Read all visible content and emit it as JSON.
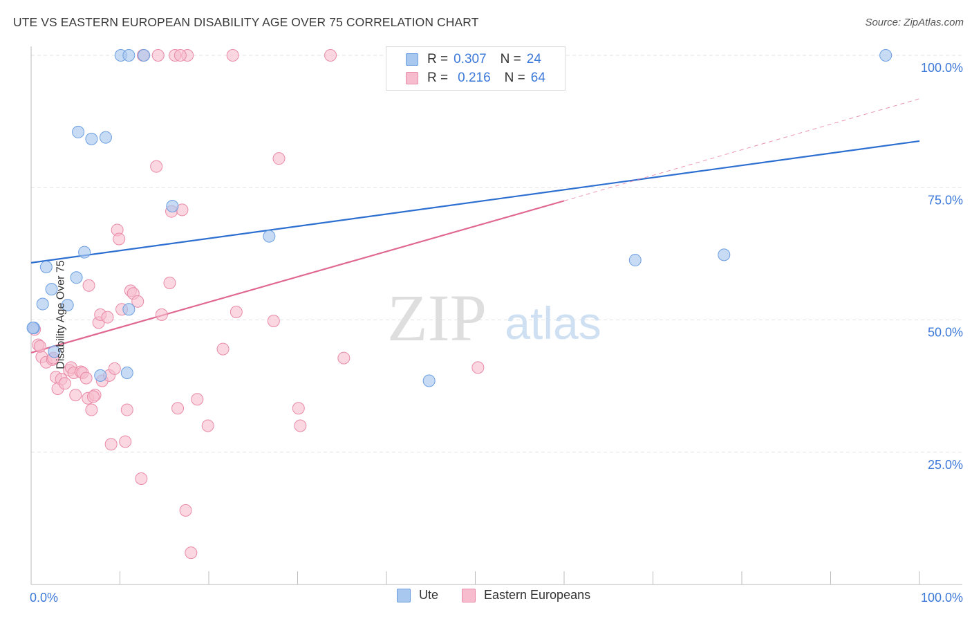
{
  "header": {
    "title": "UTE VS EASTERN EUROPEAN DISABILITY AGE OVER 75 CORRELATION CHART",
    "source": "Source: ZipAtlas.com"
  },
  "legend_top": {
    "rows": [
      {
        "r_label": "R =",
        "r_value": "0.307",
        "n_label": "N =",
        "n_value": "24"
      },
      {
        "r_label": "R =",
        "r_value": "0.216",
        "n_label": "N =",
        "n_value": "64"
      }
    ]
  },
  "legend_bottom": {
    "items": [
      "Ute",
      "Eastern Europeans"
    ]
  },
  "watermark": {
    "zip": "ZIP",
    "atlas": "atlas"
  },
  "colors": {
    "ute_fill": "#a9c8f0",
    "ute_stroke": "#6b9ee0",
    "ute_line": "#2d6fd1",
    "ee_fill": "#f7bccd",
    "ee_stroke": "#e98aa6",
    "ee_line": "#e06890",
    "axis_text": "#3c78d8"
  },
  "chart_data": {
    "type": "scatter",
    "ylabel": "Disability Age Over 75",
    "xlabel": "",
    "xlim": [
      0,
      100
    ],
    "ylim": [
      0,
      100
    ],
    "x_tick_labels": {
      "left": "0.0%",
      "right": "100.0%"
    },
    "y_tick_labels": [
      "100.0%",
      "75.0%",
      "50.0%",
      "25.0%"
    ],
    "y_tick_values": [
      100,
      75,
      50,
      25
    ],
    "grid": "horizontal dashed",
    "series": [
      {
        "name": "Ute",
        "points": [
          [
            0.3,
            48.5
          ],
          [
            1.3,
            53.0
          ],
          [
            1.7,
            60.0
          ],
          [
            2.3,
            55.8
          ],
          [
            2.6,
            44.0
          ],
          [
            4.1,
            52.8
          ],
          [
            5.1,
            58.0
          ],
          [
            5.3,
            85.5
          ],
          [
            6.0,
            62.8
          ],
          [
            6.8,
            84.2
          ],
          [
            7.8,
            39.5
          ],
          [
            8.4,
            84.5
          ],
          [
            10.1,
            100
          ],
          [
            11.0,
            100
          ],
          [
            11.0,
            52.0
          ],
          [
            10.8,
            40.0
          ],
          [
            15.9,
            71.5
          ],
          [
            26.8,
            65.8
          ],
          [
            44.8,
            38.5
          ],
          [
            68.0,
            61.3
          ],
          [
            78.0,
            62.3
          ],
          [
            96.2,
            100
          ],
          [
            0.2,
            48.5
          ],
          [
            12.7,
            100
          ]
        ],
        "trend": [
          [
            0,
            60.8
          ],
          [
            100,
            83.8
          ]
        ]
      },
      {
        "name": "Eastern Europeans",
        "points": [
          [
            0.4,
            48.2
          ],
          [
            0.8,
            45.3
          ],
          [
            1.2,
            43.0
          ],
          [
            1.7,
            42.0
          ],
          [
            2.4,
            42.5
          ],
          [
            2.5,
            42.8
          ],
          [
            2.8,
            39.2
          ],
          [
            3.0,
            37.0
          ],
          [
            3.4,
            38.8
          ],
          [
            3.8,
            38.0
          ],
          [
            4.3,
            40.5
          ],
          [
            4.5,
            41.0
          ],
          [
            4.8,
            40.0
          ],
          [
            5.0,
            35.8
          ],
          [
            5.6,
            40.2
          ],
          [
            5.8,
            40.0
          ],
          [
            6.2,
            39.0
          ],
          [
            6.4,
            35.2
          ],
          [
            6.5,
            56.5
          ],
          [
            6.8,
            33.0
          ],
          [
            7.2,
            35.8
          ],
          [
            7.6,
            49.5
          ],
          [
            7.8,
            51.0
          ],
          [
            8.0,
            38.5
          ],
          [
            8.6,
            50.5
          ],
          [
            8.8,
            39.5
          ],
          [
            9.0,
            26.5
          ],
          [
            9.4,
            40.8
          ],
          [
            9.7,
            67.0
          ],
          [
            9.9,
            65.3
          ],
          [
            10.2,
            52.0
          ],
          [
            10.6,
            27.0
          ],
          [
            10.8,
            33.0
          ],
          [
            11.2,
            55.5
          ],
          [
            11.5,
            55.0
          ],
          [
            12.0,
            53.5
          ],
          [
            12.4,
            20.0
          ],
          [
            12.6,
            100
          ],
          [
            14.1,
            79.0
          ],
          [
            14.3,
            100
          ],
          [
            14.7,
            51.0
          ],
          [
            15.6,
            57.0
          ],
          [
            15.8,
            70.5
          ],
          [
            16.2,
            100
          ],
          [
            16.5,
            33.3
          ],
          [
            17.0,
            70.8
          ],
          [
            17.4,
            14.0
          ],
          [
            17.6,
            100
          ],
          [
            18.0,
            6.0
          ],
          [
            18.7,
            35.0
          ],
          [
            19.9,
            30.0
          ],
          [
            21.6,
            44.5
          ],
          [
            22.7,
            100
          ],
          [
            23.1,
            51.5
          ],
          [
            27.3,
            49.8
          ],
          [
            27.9,
            80.5
          ],
          [
            30.1,
            33.3
          ],
          [
            30.3,
            30.0
          ],
          [
            33.7,
            100
          ],
          [
            35.2,
            42.8
          ],
          [
            50.3,
            41.0
          ],
          [
            16.8,
            100
          ],
          [
            1.0,
            45.0
          ],
          [
            7.0,
            35.5
          ]
        ],
        "trend": [
          [
            0,
            43.8
          ],
          [
            60,
            72.5
          ]
        ],
        "trend_extended": [
          [
            60,
            72.5
          ],
          [
            100,
            91.8
          ]
        ]
      }
    ]
  }
}
